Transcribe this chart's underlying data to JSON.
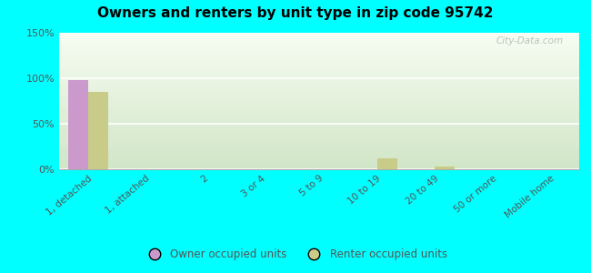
{
  "title": "Owners and renters by unit type in zip code 95742",
  "categories": [
    "1, detached",
    "1, attached",
    "2",
    "3 or 4",
    "5 to 9",
    "10 to 19",
    "20 to 49",
    "50 or more",
    "Mobile home"
  ],
  "owner_values": [
    98,
    0,
    0,
    0,
    0,
    0,
    0,
    0,
    0
  ],
  "renter_values": [
    85,
    0,
    0,
    0,
    0,
    12,
    3,
    0,
    0
  ],
  "owner_color": "#cc99cc",
  "renter_color": "#c8cc88",
  "background_color": "#00ffff",
  "plot_bg_color": "#f0f7e8",
  "ylim": [
    0,
    150
  ],
  "yticks": [
    0,
    50,
    100,
    150
  ],
  "ytick_labels": [
    "0%",
    "50%",
    "100%",
    "150%"
  ],
  "bar_width": 0.35,
  "legend_owner": "Owner occupied units",
  "legend_renter": "Renter occupied units",
  "watermark": "City-Data.com",
  "grid_color": "#d0d8c0"
}
